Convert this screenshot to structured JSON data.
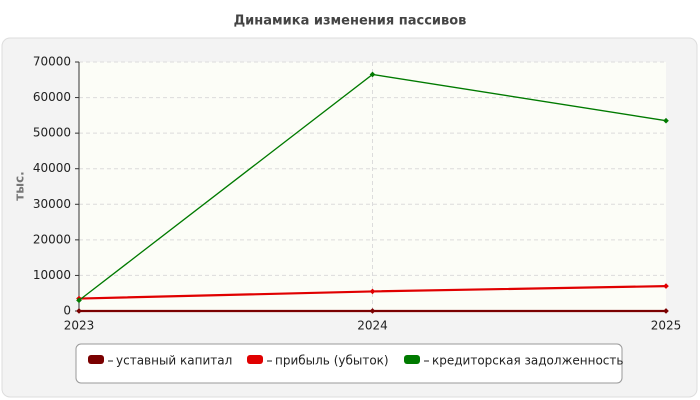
{
  "chart_data": {
    "type": "line",
    "title": "Динамика изменения пассивов",
    "y_label": "тыс.",
    "categories": [
      "2023",
      "2024",
      "2025"
    ],
    "series": [
      {
        "name": "уставный капитал",
        "color": "#7a0000",
        "values": [
          10,
          10,
          10
        ]
      },
      {
        "name": "прибыль (убыток)",
        "color": "#e00000",
        "values": [
          3500,
          5500,
          7000
        ]
      },
      {
        "name": "кредиторская задолженность",
        "color": "#007a00",
        "values": [
          3000,
          66500,
          53500
        ]
      }
    ],
    "ylim": [
      0,
      70000
    ],
    "yticks": [
      0,
      10000,
      20000,
      30000,
      40000,
      50000,
      60000,
      70000
    ],
    "grid": true
  }
}
